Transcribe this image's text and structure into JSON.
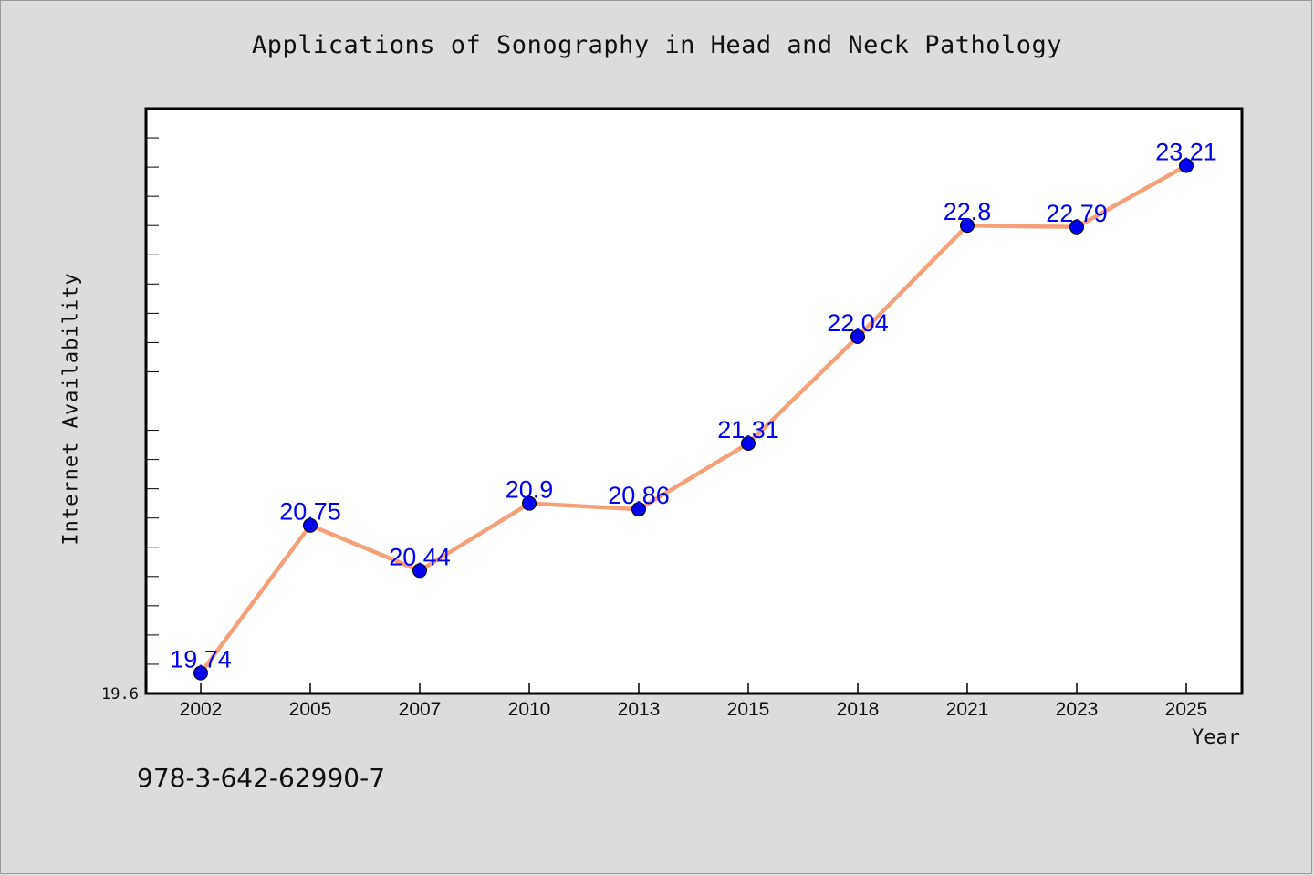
{
  "chart_data": {
    "type": "line",
    "title": "Applications of Sonography in Head and Neck Pathology",
    "xlabel": "Year",
    "ylabel": "Internet Availability",
    "categories": [
      "2002",
      "2005",
      "2007",
      "2010",
      "2013",
      "2015",
      "2018",
      "2021",
      "2023",
      "2025"
    ],
    "series": [
      {
        "values": [
          19.74,
          20.75,
          20.44,
          20.9,
          20.86,
          21.31,
          22.04,
          22.8,
          22.79,
          23.21
        ],
        "data_labels": [
          "19.74",
          "20.75",
          "20.44",
          "20.9",
          "20.86",
          "21.31",
          "22.04",
          "22.8",
          "22.79",
          "23.21"
        ]
      }
    ],
    "ylim": [
      19.6,
      23.6
    ],
    "yticklabels": [
      "19.6"
    ],
    "grid": false,
    "line_color": "#f4a07a",
    "marker_color": "#0000ee",
    "label_color": "#0000ee"
  },
  "footer_text": "978-3-642-62990-7"
}
